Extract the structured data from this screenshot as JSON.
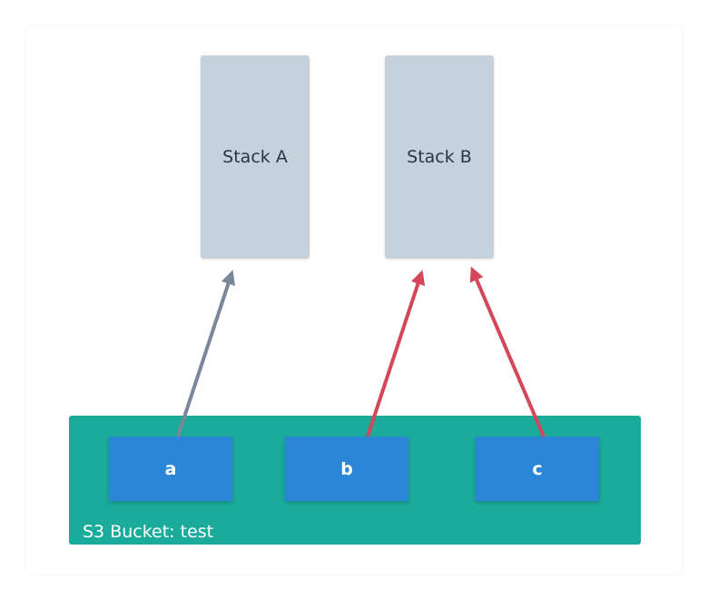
{
  "stacks": [
    {
      "id": "a",
      "label": "Stack A"
    },
    {
      "id": "b",
      "label": "Stack B"
    }
  ],
  "bucket": {
    "label": "S3 Bucket: test",
    "objects": [
      {
        "label": "a"
      },
      {
        "label": "b"
      },
      {
        "label": "c"
      }
    ]
  },
  "arrows": [
    {
      "from": "a",
      "to": "Stack A",
      "color": "#7a8799"
    },
    {
      "from": "b",
      "to": "Stack B",
      "color": "#d4465a"
    },
    {
      "from": "c",
      "to": "Stack B",
      "color": "#d4465a"
    }
  ],
  "colors": {
    "stack_fill": "#c5d2dc",
    "bucket_fill": "#1aab9b",
    "object_fill": "#2b86d8",
    "neutral_arrow": "#7a8799",
    "alert_arrow": "#d4465a"
  }
}
